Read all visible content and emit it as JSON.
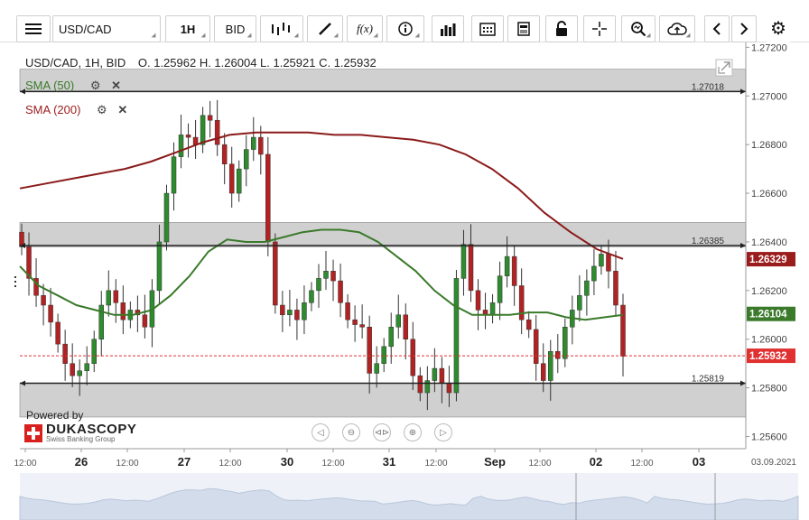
{
  "toolbar": {
    "instrument": "USD/CAD",
    "timeframe": "1H",
    "side": "BID",
    "icons": [
      "menu-icon",
      "candles-icon",
      "draw-icon",
      "function-icon",
      "info-icon",
      "volume-icon",
      "calendar-icon",
      "report-icon",
      "lock-icon",
      "crosshair-icon",
      "zoom-icon",
      "upload-icon",
      "back-icon",
      "forward-icon",
      "gear-icon"
    ]
  },
  "header": {
    "symbol_line": "USD/CAD, 1H, BID",
    "ohlc": "O. 1.25962 H. 1.26004 L. 1.25921 C. 1.25932"
  },
  "indicators": [
    {
      "label": "SMA (50)",
      "color": "#3a7a2a"
    },
    {
      "label": "SMA (200)",
      "color": "#9b1c1c"
    }
  ],
  "branding": {
    "powered": "Powered by",
    "name": "DUKASCOPY",
    "tagline": "Swiss Banking Group"
  },
  "levels": [
    {
      "label": "1.27018",
      "value": 1.27018
    },
    {
      "label": "1.26385",
      "value": 1.26385
    },
    {
      "label": "1.25819",
      "value": 1.25819
    }
  ],
  "price_tags": [
    {
      "label": "1.26329",
      "value": 1.26329,
      "color": "#9b1c1c"
    },
    {
      "label": "1.26104",
      "value": 1.26104,
      "color": "#3a7a2a"
    },
    {
      "label": "1.25932",
      "value": 1.25932,
      "color": "#e03030"
    }
  ],
  "chart_data": {
    "type": "candlestick",
    "ylim": [
      1.2555,
      1.2722
    ],
    "y_ticks": [
      1.272,
      1.27,
      1.268,
      1.266,
      1.264,
      1.262,
      1.26,
      1.258,
      1.256
    ],
    "y_tick_labels": [
      "1.27200",
      "1.27000",
      "1.26800",
      "1.26600",
      "1.26400",
      "1.26200",
      "1.26000",
      "1.25800",
      "1.25600"
    ],
    "x_tick_labels": [
      "12:00",
      "26",
      "12:00",
      "27",
      "12:00",
      "30",
      "12:00",
      "31",
      "12:00",
      "Sep",
      "12:00",
      "02",
      "12:00",
      "03"
    ],
    "x_axis_end_label": "03.09.2021",
    "bands": [
      [
        1.2702,
        1.2711
      ],
      [
        1.2638,
        1.2648
      ],
      [
        1.2568,
        1.2582
      ]
    ],
    "close_series": [
      1.2638,
      1.2625,
      1.2618,
      1.2614,
      1.2607,
      1.2598,
      1.259,
      1.2585,
      1.2587,
      1.259,
      1.26,
      1.2614,
      1.262,
      1.2615,
      1.2608,
      1.2612,
      1.261,
      1.2605,
      1.262,
      1.264,
      1.266,
      1.2675,
      1.2684,
      1.2683,
      1.268,
      1.2692,
      1.269,
      1.268,
      1.2672,
      1.266,
      1.267,
      1.2678,
      1.2683,
      1.2676,
      1.264,
      1.2614,
      1.261,
      1.2612,
      1.2608,
      1.2615,
      1.262,
      1.2625,
      1.2628,
      1.2624,
      1.2615,
      1.2608,
      1.2606,
      1.2605,
      1.2586,
      1.259,
      1.2597,
      1.2605,
      1.261,
      1.26,
      1.2585,
      1.2578,
      1.2583,
      1.2588,
      1.2582,
      1.2578,
      1.2625,
      1.2639,
      1.262,
      1.2612,
      1.261,
      1.2615,
      1.2626,
      1.2634,
      1.2622,
      1.2608,
      1.2604,
      1.259,
      1.2583,
      1.2595,
      1.2592,
      1.2605,
      1.2612,
      1.2618,
      1.2624,
      1.263,
      1.2635,
      1.2628,
      1.2614,
      1.2593
    ],
    "series": [
      {
        "name": "SMA (50)",
        "values": [
          1.263,
          1.2622,
          1.2618,
          1.2614,
          1.2612,
          1.261,
          1.261,
          1.2612,
          1.2618,
          1.2626,
          1.2636,
          1.2641,
          1.264,
          1.264,
          1.2642,
          1.2644,
          1.2645,
          1.2645,
          1.2644,
          1.264,
          1.2634,
          1.2628,
          1.262,
          1.2614,
          1.261,
          1.261,
          1.261,
          1.2611,
          1.2611,
          1.2609,
          1.2608,
          1.2609,
          1.261
        ]
      },
      {
        "name": "SMA (200)",
        "values": [
          1.2662,
          1.2664,
          1.2666,
          1.2668,
          1.267,
          1.2673,
          1.2677,
          1.2681,
          1.2684,
          1.2685,
          1.2685,
          1.2685,
          1.2684,
          1.2684,
          1.2683,
          1.2682,
          1.268,
          1.2676,
          1.267,
          1.2662,
          1.2652,
          1.2644,
          1.2637,
          1.2633
        ]
      }
    ]
  }
}
